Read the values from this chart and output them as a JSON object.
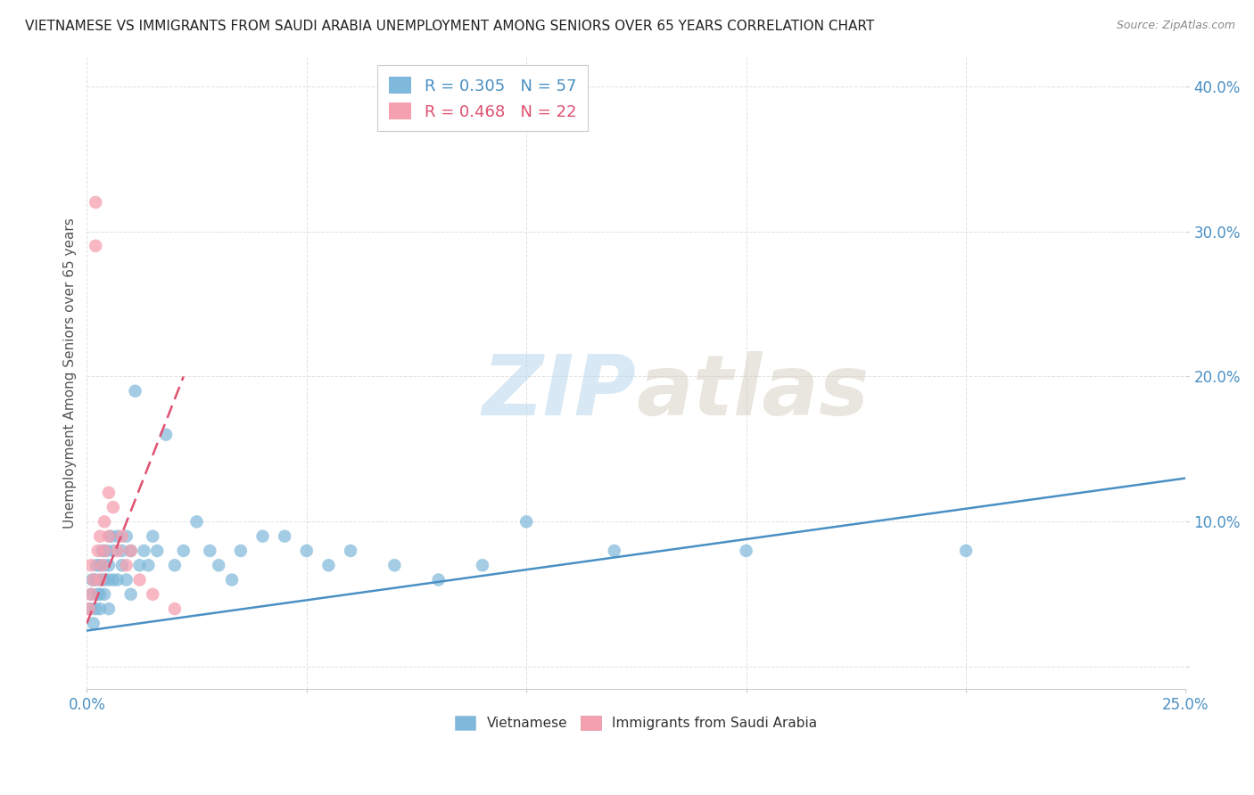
{
  "title": "VIETNAMESE VS IMMIGRANTS FROM SAUDI ARABIA UNEMPLOYMENT AMONG SENIORS OVER 65 YEARS CORRELATION CHART",
  "source": "Source: ZipAtlas.com",
  "ylabel": "Unemployment Among Seniors over 65 years",
  "xlim": [
    0.0,
    0.25
  ],
  "ylim": [
    -0.015,
    0.42
  ],
  "xticks": [
    0.0,
    0.05,
    0.1,
    0.15,
    0.2,
    0.25
  ],
  "xticklabels": [
    "0.0%",
    "",
    "",
    "",
    "",
    "25.0%"
  ],
  "yticks": [
    0.0,
    0.1,
    0.2,
    0.3,
    0.4
  ],
  "yticklabels": [
    "",
    "10.0%",
    "20.0%",
    "30.0%",
    "40.0%"
  ],
  "viet_R": 0.305,
  "viet_N": 57,
  "saudi_R": 0.468,
  "saudi_N": 22,
  "viet_color": "#7EB8DA",
  "saudi_color": "#F5A0B0",
  "viet_line_color": "#4A90C4",
  "saudi_line_color": "#E05070",
  "watermark_zip": "ZIP",
  "watermark_atlas": "atlas",
  "background_color": "#FFFFFF",
  "legend_R_color": "#4A90C4",
  "legend_R2_color": "#E05070",
  "tick_color": "#4A90C4",
  "ylabel_color": "#555555",
  "title_color": "#222222",
  "source_color": "#888888",
  "grid_color": "#DDDDDD",
  "viet_x": [
    0.0008,
    0.001,
    0.0012,
    0.0015,
    0.002,
    0.002,
    0.0022,
    0.0025,
    0.003,
    0.003,
    0.003,
    0.0032,
    0.0035,
    0.004,
    0.004,
    0.004,
    0.0045,
    0.005,
    0.005,
    0.005,
    0.0055,
    0.006,
    0.006,
    0.007,
    0.007,
    0.008,
    0.008,
    0.009,
    0.009,
    0.01,
    0.01,
    0.011,
    0.012,
    0.013,
    0.014,
    0.015,
    0.016,
    0.018,
    0.02,
    0.022,
    0.025,
    0.028,
    0.03,
    0.033,
    0.035,
    0.04,
    0.045,
    0.05,
    0.055,
    0.06,
    0.07,
    0.08,
    0.09,
    0.1,
    0.12,
    0.15,
    0.2
  ],
  "viet_y": [
    0.04,
    0.05,
    0.06,
    0.03,
    0.06,
    0.04,
    0.07,
    0.05,
    0.07,
    0.05,
    0.04,
    0.06,
    0.08,
    0.07,
    0.06,
    0.05,
    0.08,
    0.07,
    0.06,
    0.04,
    0.09,
    0.08,
    0.06,
    0.09,
    0.06,
    0.08,
    0.07,
    0.09,
    0.06,
    0.08,
    0.05,
    0.19,
    0.07,
    0.08,
    0.07,
    0.09,
    0.08,
    0.16,
    0.07,
    0.08,
    0.1,
    0.08,
    0.07,
    0.06,
    0.08,
    0.09,
    0.09,
    0.08,
    0.07,
    0.08,
    0.07,
    0.06,
    0.07,
    0.1,
    0.08,
    0.08,
    0.08
  ],
  "saudi_x": [
    0.0005,
    0.001,
    0.001,
    0.0015,
    0.002,
    0.002,
    0.0025,
    0.003,
    0.003,
    0.0035,
    0.004,
    0.004,
    0.005,
    0.005,
    0.006,
    0.007,
    0.008,
    0.009,
    0.01,
    0.012,
    0.015,
    0.02
  ],
  "saudi_y": [
    0.04,
    0.07,
    0.05,
    0.06,
    0.29,
    0.32,
    0.08,
    0.09,
    0.06,
    0.07,
    0.1,
    0.08,
    0.12,
    0.09,
    0.11,
    0.08,
    0.09,
    0.07,
    0.08,
    0.06,
    0.05,
    0.04
  ],
  "viet_line_x": [
    0.0,
    0.25
  ],
  "viet_line_y": [
    0.025,
    0.13
  ],
  "saudi_line_x": [
    0.0,
    0.022
  ],
  "saudi_line_y": [
    0.03,
    0.2
  ]
}
